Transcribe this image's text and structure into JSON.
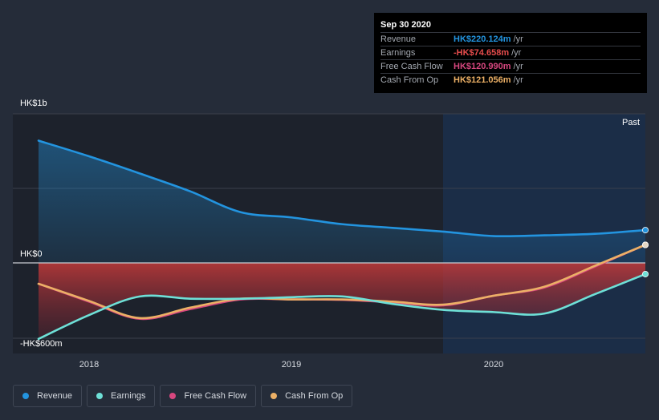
{
  "tooltip": {
    "date": "Sep 30 2020",
    "rows": [
      {
        "label": "Revenue",
        "value": "HK$220.124m",
        "unit": "/yr",
        "color": "#2394df"
      },
      {
        "label": "Earnings",
        "value": "-HK$74.658m",
        "unit": "/yr",
        "color": "#e64c4c"
      },
      {
        "label": "Free Cash Flow",
        "value": "HK$120.990m",
        "unit": "/yr",
        "color": "#d7477f"
      },
      {
        "label": "Cash From Op",
        "value": "HK$121.056m",
        "unit": "/yr",
        "color": "#ecb066"
      }
    ]
  },
  "past_label": "Past",
  "legend": [
    {
      "label": "Revenue",
      "color": "#2394df"
    },
    {
      "label": "Earnings",
      "color": "#6ee0d7"
    },
    {
      "label": "Free Cash Flow",
      "color": "#d7477f"
    },
    {
      "label": "Cash From Op",
      "color": "#ecb066"
    }
  ],
  "chart_data": {
    "type": "line",
    "units": "HK$ millions",
    "y_tick_labels": [
      "HK$1b",
      "HK$0",
      "-HK$600m"
    ],
    "y_ticks": [
      1000,
      0,
      -600
    ],
    "ylim": [
      -600,
      1000
    ],
    "x_tick_labels": [
      "2018",
      "2019",
      "2020"
    ],
    "x_ticks": [
      2018.0,
      2019.0,
      2020.0
    ],
    "xlim": [
      2017.75,
      2020.75
    ],
    "forecast_start": 2019.75,
    "series": [
      {
        "name": "Revenue",
        "color": "#2394df",
        "area": true,
        "x": [
          2017.75,
          2018.0,
          2018.25,
          2018.5,
          2018.75,
          2019.0,
          2019.25,
          2019.5,
          2019.75,
          2020.0,
          2020.25,
          2020.5,
          2020.75
        ],
        "y": [
          820,
          715,
          600,
          480,
          340,
          305,
          260,
          235,
          210,
          180,
          185,
          195,
          220
        ]
      },
      {
        "name": "Earnings",
        "color": "#6ee0d7",
        "x": [
          2017.75,
          2018.0,
          2018.25,
          2018.5,
          2018.75,
          2019.0,
          2019.25,
          2019.5,
          2019.75,
          2020.0,
          2020.25,
          2020.5,
          2020.75
        ],
        "y": [
          -510,
          -350,
          -225,
          -240,
          -240,
          -230,
          -225,
          -275,
          -315,
          -330,
          -340,
          -210,
          -75
        ]
      },
      {
        "name": "Free Cash Flow",
        "color": "#d7477f",
        "x": [
          2017.75,
          2018.0,
          2018.25,
          2018.5,
          2018.75,
          2019.0,
          2019.25,
          2019.5,
          2019.75,
          2020.0,
          2020.25,
          2020.5,
          2020.75
        ],
        "y": [
          -140,
          -260,
          -375,
          -310,
          -245,
          -245,
          -248,
          -265,
          -285,
          -220,
          -165,
          -25,
          121
        ]
      },
      {
        "name": "Cash From Op",
        "color": "#ecb066",
        "x": [
          2017.75,
          2018.0,
          2018.25,
          2018.5,
          2018.75,
          2019.0,
          2019.25,
          2019.5,
          2019.75,
          2020.0,
          2020.25,
          2020.5,
          2020.75
        ],
        "y": [
          -140,
          -255,
          -370,
          -300,
          -240,
          -245,
          -245,
          -260,
          -280,
          -220,
          -160,
          -20,
          121
        ]
      }
    ]
  }
}
